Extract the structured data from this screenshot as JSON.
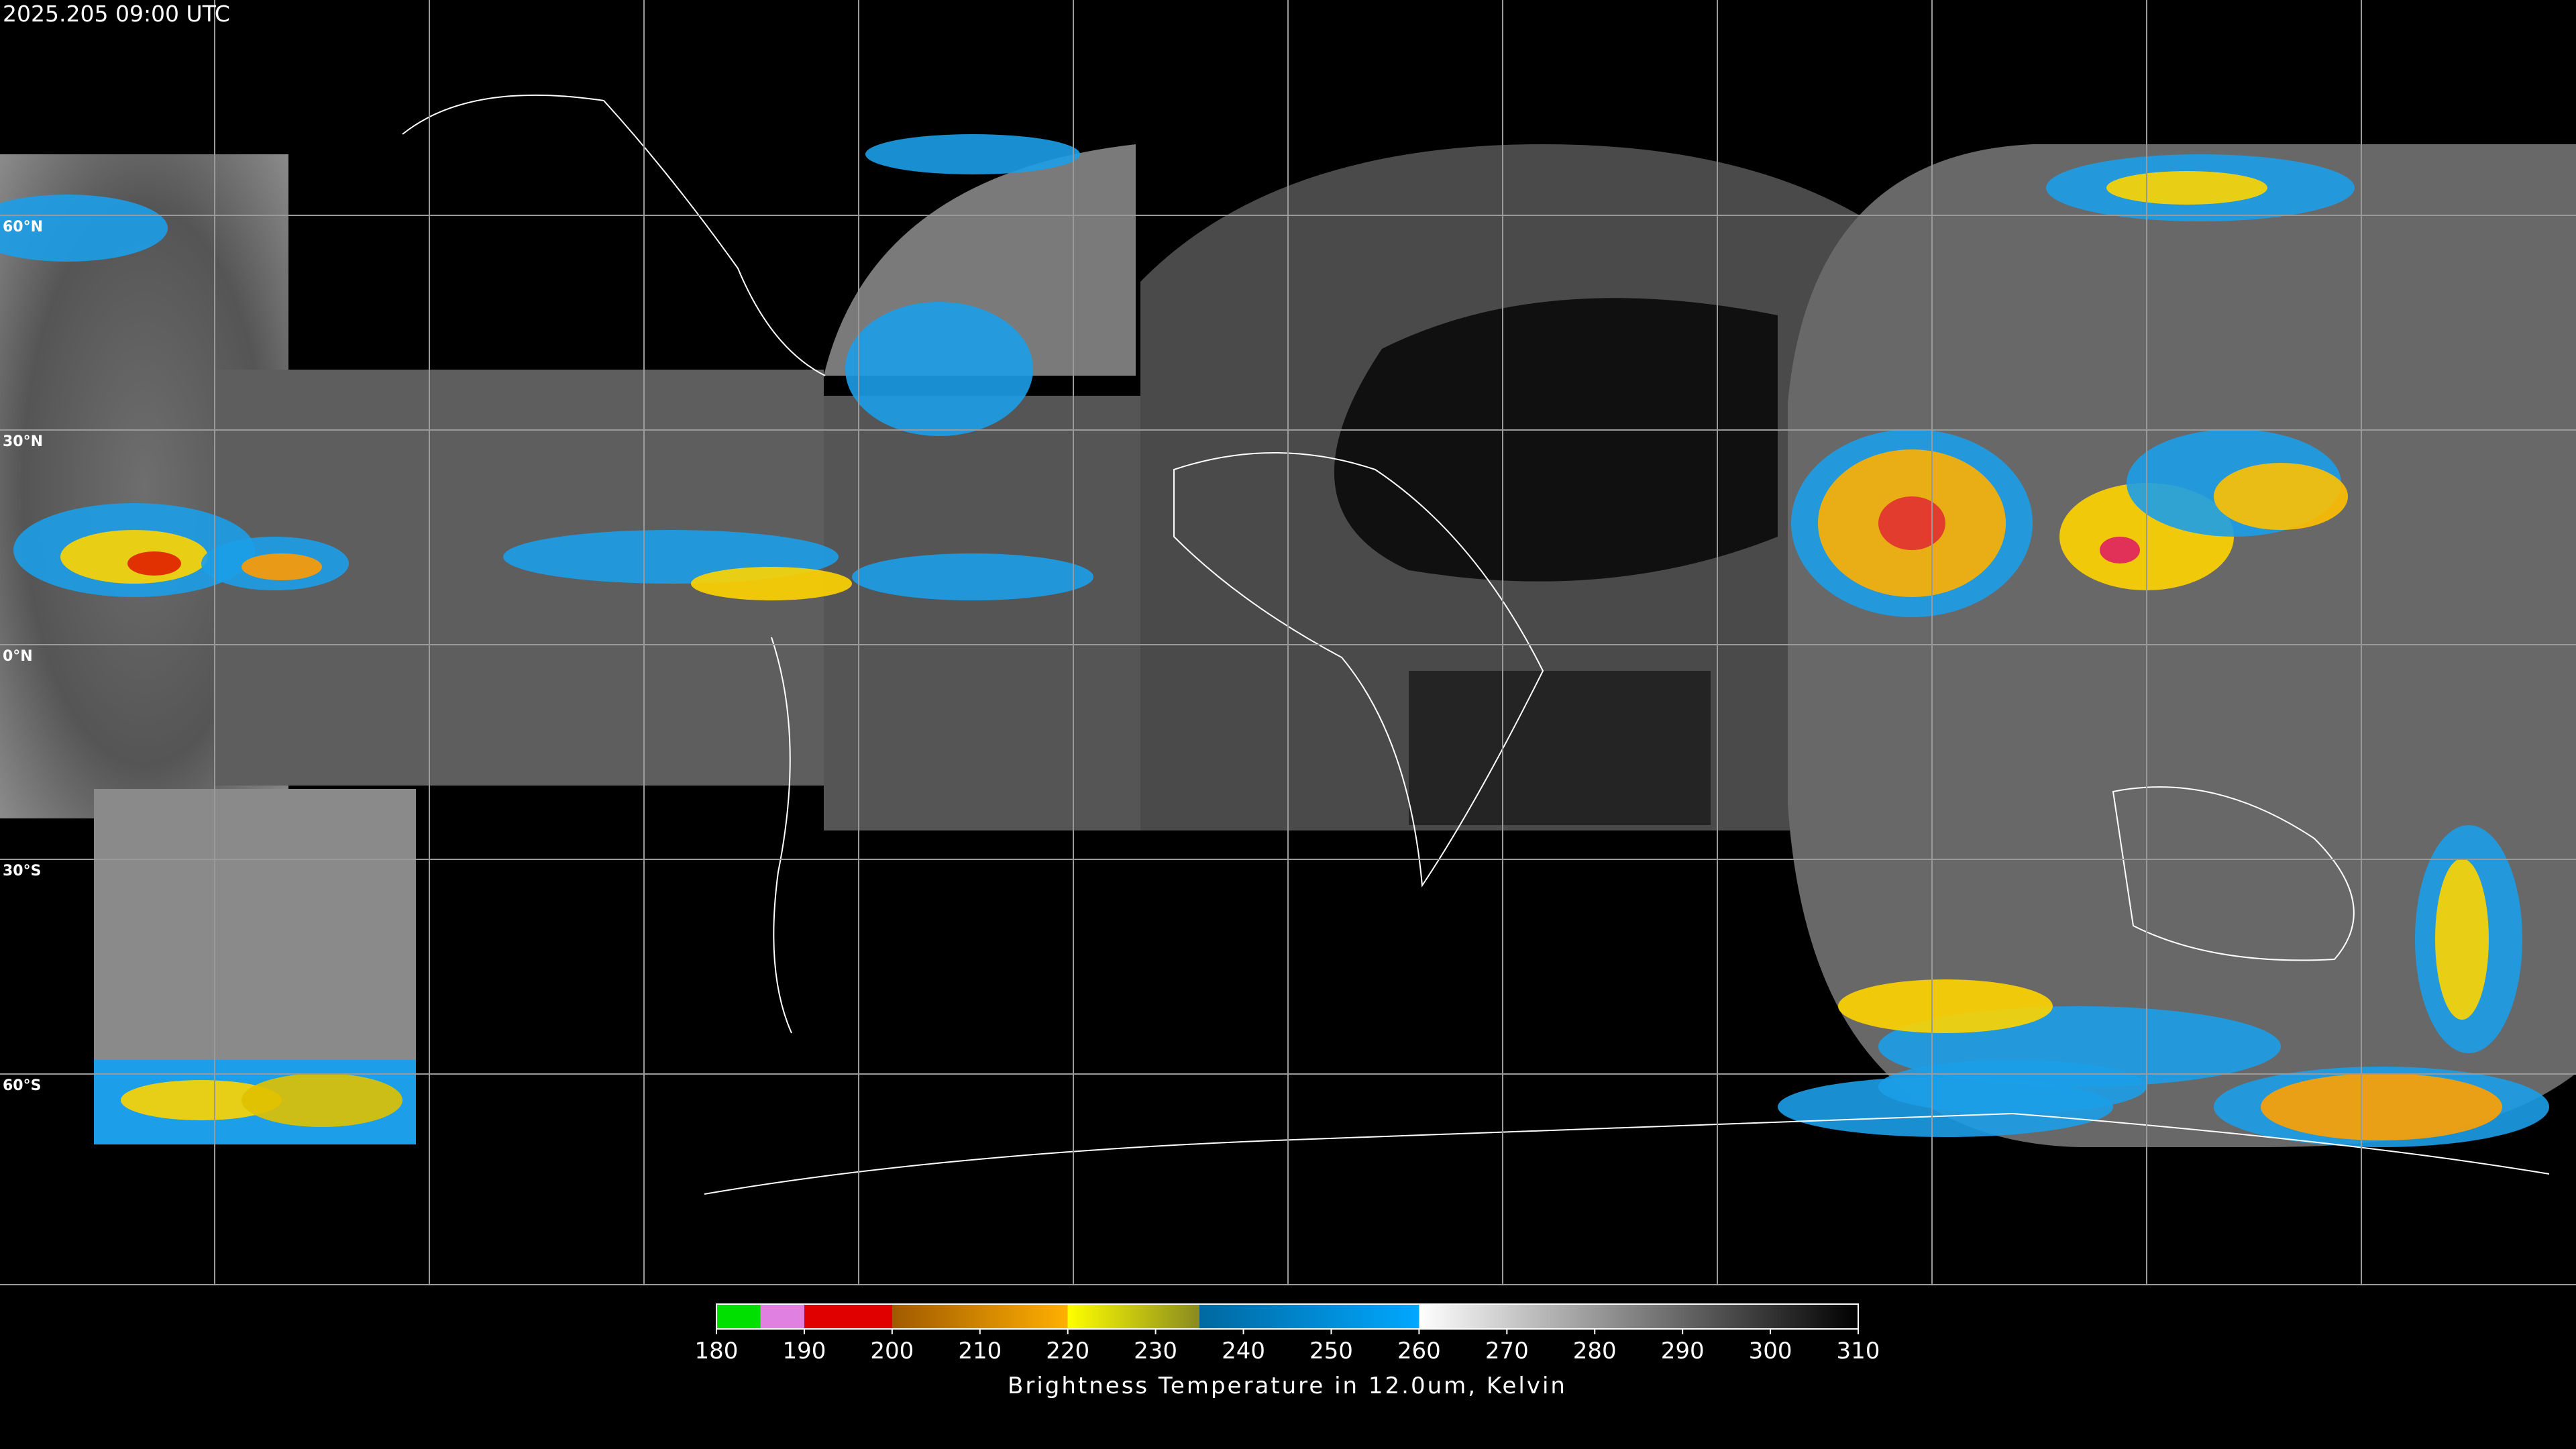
{
  "header": {
    "timestamp": "2025.205 09:00 UTC"
  },
  "grid": {
    "lat_labels": [
      "60°N",
      "30°N",
      "0°N",
      "30°S",
      "60°S"
    ]
  },
  "chart_data": {
    "type": "colorbar",
    "xlim": [
      180,
      310
    ],
    "xticks": [
      180,
      190,
      200,
      210,
      220,
      230,
      240,
      250,
      260,
      270,
      280,
      290,
      300,
      310
    ],
    "stops": [
      {
        "value": 180,
        "color": "#00e000"
      },
      {
        "value": 185,
        "color": "#00e000"
      },
      {
        "value": 185,
        "color": "#e080e0"
      },
      {
        "value": 190,
        "color": "#e080e0"
      },
      {
        "value": 190,
        "color": "#e00000"
      },
      {
        "value": 200,
        "color": "#e00000"
      },
      {
        "value": 200,
        "color": "#a05a00"
      },
      {
        "value": 220,
        "color": "#ffb000"
      },
      {
        "value": 220,
        "color": "#ffff00"
      },
      {
        "value": 235,
        "color": "#8a8a20"
      },
      {
        "value": 235,
        "color": "#0068a0"
      },
      {
        "value": 260,
        "color": "#00a8ff"
      },
      {
        "value": 260,
        "color": "#ffffff"
      },
      {
        "value": 310,
        "color": "#000000"
      }
    ],
    "xlabel": "Brightness Temperature in 12.0um, Kelvin"
  }
}
